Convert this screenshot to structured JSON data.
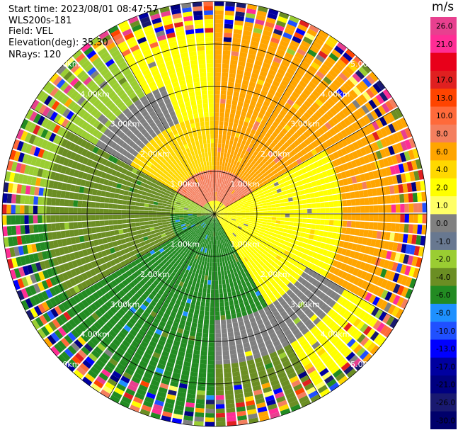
{
  "info": {
    "start_time": "Start time: 2023/08/01 08:47:57",
    "instrument": "WLS200s-181",
    "field": "Field: VEL",
    "elevation": "Elevation(deg): 35.30",
    "nrays": "NRays: 120"
  },
  "colorbar": {
    "unit": "m/s",
    "levels": [
      {
        "label": "26.0",
        "color": "#e8408f"
      },
      {
        "label": "21.0",
        "color": "#ff2d95"
      },
      {
        "label": "",
        "color": "#e8001a"
      },
      {
        "label": "17.0",
        "color": "#e02020"
      },
      {
        "label": "13.0",
        "color": "#ff4400"
      },
      {
        "label": "10.0",
        "color": "#ff6a3a"
      },
      {
        "label": "8.0",
        "color": "#f47f5e"
      },
      {
        "label": "6.0",
        "color": "#ffa500"
      },
      {
        "label": "4.0",
        "color": "#ffd800"
      },
      {
        "label": "2.0",
        "color": "#ffff00"
      },
      {
        "label": "1.0",
        "color": "#ffff66"
      },
      {
        "label": "0.0",
        "color": "#808080"
      },
      {
        "label": "-1.0",
        "color": "#687890"
      },
      {
        "label": "-2.0",
        "color": "#9acd32"
      },
      {
        "label": "-4.0",
        "color": "#6b8e23"
      },
      {
        "label": "-6.0",
        "color": "#228b22"
      },
      {
        "label": "-8.0",
        "color": "#1e90ff"
      },
      {
        "label": "-10.0",
        "color": "#2050ff"
      },
      {
        "label": "-13.0",
        "color": "#0000ff"
      },
      {
        "label": "-17.0",
        "color": "#0000a0"
      },
      {
        "label": "-21.0",
        "color": "#000080"
      },
      {
        "label": "-26.0",
        "color": "#191970"
      },
      {
        "label": "-30.0",
        "color": "#00006b"
      }
    ]
  },
  "chart_data": {
    "type": "heatmap",
    "projection": "polar PPI",
    "field": "VEL",
    "units": "m/s",
    "nrays": 120,
    "elevation_deg": 35.3,
    "max_range_km": 5.0,
    "range_rings": [
      {
        "label": "1.00km",
        "value": 1.0
      },
      {
        "label": "2.00km",
        "value": 2.0
      },
      {
        "label": "3.00km",
        "value": 3.0
      },
      {
        "label": "4.00km",
        "value": 4.0
      },
      {
        "label": "5.00km",
        "value": 5.0
      }
    ],
    "azimuth_lines_deg": [
      0,
      30,
      60,
      90,
      120,
      150,
      180,
      210,
      240,
      270,
      300,
      330
    ],
    "pattern": [
      {
        "azimuth_from": 300,
        "azimuth_to": 60,
        "range_from": 0.3,
        "range_to": 1.7,
        "value": 8.0
      },
      {
        "azimuth_from": 0,
        "azimuth_to": 90,
        "range_from": 1.0,
        "range_to": 3.5,
        "value": 6.0
      },
      {
        "azimuth_from": 60,
        "azimuth_to": 180,
        "range_from": 0.1,
        "range_to": 3.0,
        "value": 2.0
      },
      {
        "azimuth_from": 270,
        "azimuth_to": 360,
        "range_from": 1.0,
        "range_to": 2.3,
        "value": 4.0
      },
      {
        "azimuth_from": 180,
        "azimuth_to": 240,
        "range_from": 0.7,
        "range_to": 1.4,
        "value": -10.0
      },
      {
        "azimuth_from": 150,
        "azimuth_to": 260,
        "range_from": 0.1,
        "range_to": 3.0,
        "value": -6.0
      },
      {
        "azimuth_from": 240,
        "azimuth_to": 300,
        "range_from": 1.0,
        "range_to": 4.0,
        "value": -4.0
      },
      {
        "azimuth_from": 120,
        "azimuth_to": 180,
        "range_from": 2.5,
        "range_to": 3.5,
        "value": 0.0
      },
      {
        "azimuth_from": 300,
        "azimuth_to": 340,
        "range_from": 2.3,
        "range_to": 3.2,
        "value": 0.0
      }
    ]
  }
}
